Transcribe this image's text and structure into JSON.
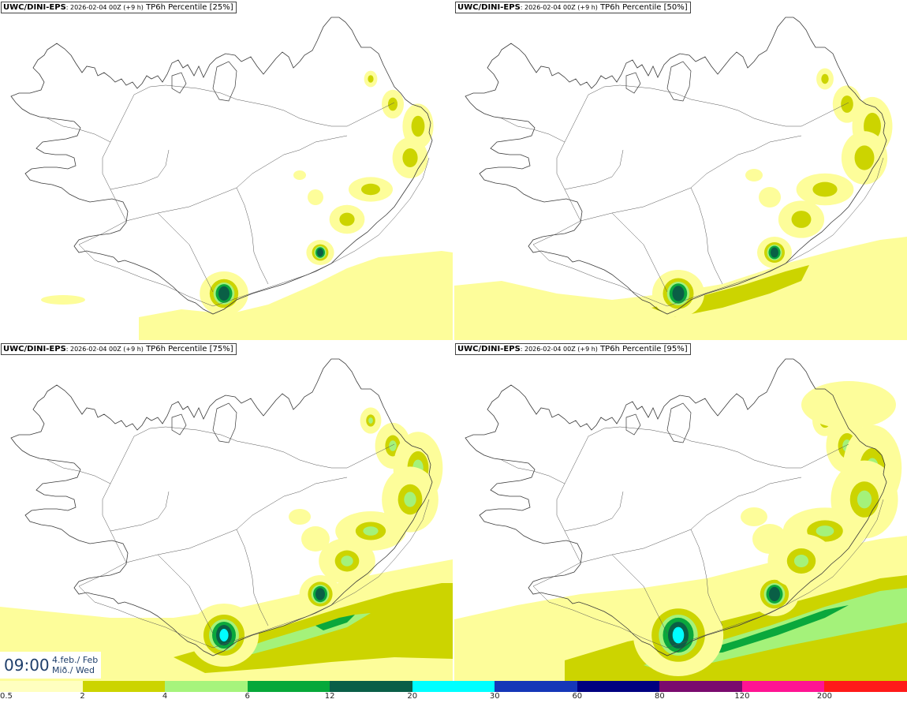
{
  "colors": {
    "coast": "#3a3a3a",
    "roads": "#555555",
    "l1": "#fdfd9a",
    "l2": "#ccd400",
    "l3": "#a4f27a",
    "l4": "#0aa83c",
    "l5": "#0a5f46",
    "l6": "#00ffff"
  },
  "panels": [
    {
      "model": "UWC/DINI-EPS",
      "run": ": 2026-02-04 00Z (+9 h)",
      "variable": " TP6h Percentile [25%]",
      "intensity": 0
    },
    {
      "model": "UWC/DINI-EPS",
      "run": ": 2026-02-04 00Z (+9 h)",
      "variable": " TP6h Percentile [50%]",
      "intensity": 1
    },
    {
      "model": "UWC/DINI-EPS",
      "run": ": 2026-02-04 00Z (+9 h)",
      "variable": " TP6h Percentile [75%]",
      "intensity": 2
    },
    {
      "model": "UWC/DINI-EPS",
      "run": ": 2026-02-04 00Z (+9 h)",
      "variable": " TP6h Percentile [95%]",
      "intensity": 3
    }
  ],
  "time": {
    "clock": "09:00",
    "date_line": "4.feb./ Feb",
    "day_line": "Mið./ Wed"
  },
  "legend": {
    "colors": [
      "#ffffc0",
      "#ccd400",
      "#a6f47c",
      "#06a83a",
      "#0a5f48",
      "#00ffff",
      "#1537b8",
      "#000080",
      "#7a0a6e",
      "#ff1493",
      "#ff1a1a"
    ],
    "labels": [
      "0.5",
      "2",
      "4",
      "6",
      "12",
      "20",
      "30",
      "60",
      "80",
      "120",
      "200"
    ]
  }
}
